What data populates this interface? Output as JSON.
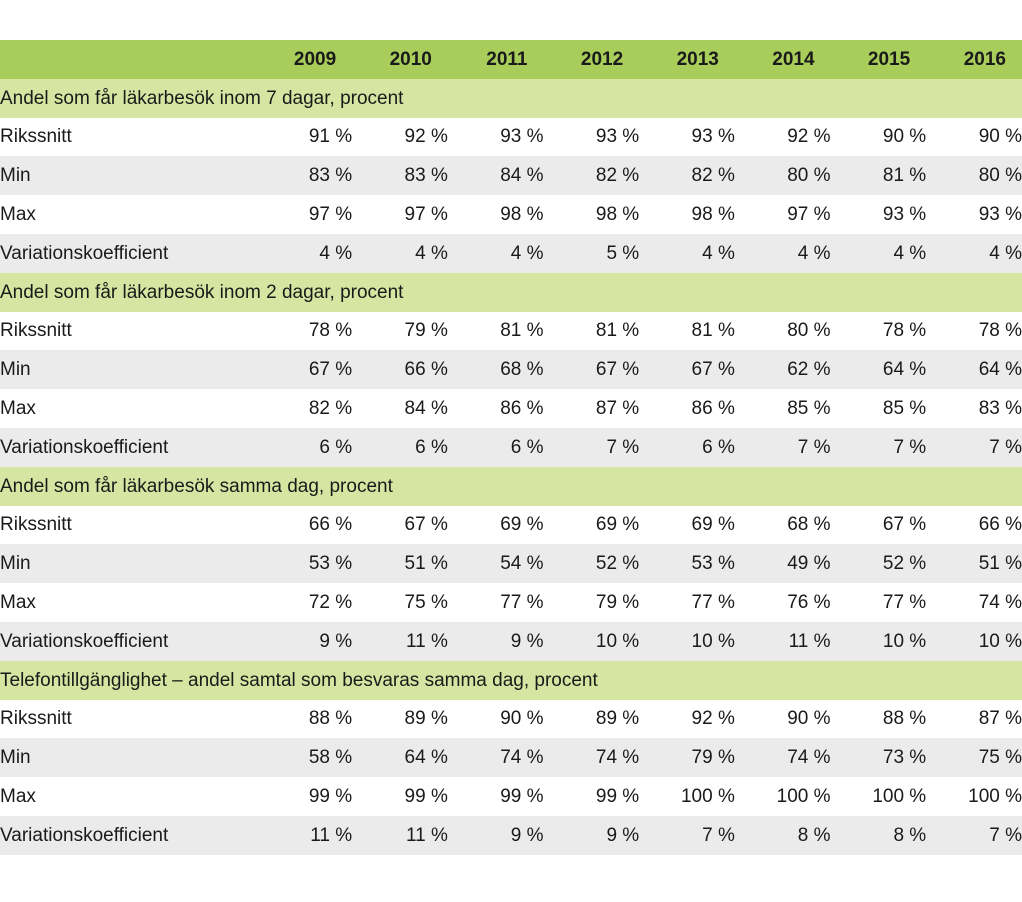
{
  "years": [
    "2009",
    "2010",
    "2011",
    "2012",
    "2013",
    "2014",
    "2015",
    "2016"
  ],
  "sections": [
    {
      "title": "Andel som får läkarbesök inom 7 dagar, procent",
      "rows": [
        {
          "label": "Rikssnitt",
          "values": [
            "91 %",
            "92 %",
            "93 %",
            "93 %",
            "93 %",
            "92 %",
            "90 %",
            "90 %"
          ]
        },
        {
          "label": "Min",
          "values": [
            "83 %",
            "83 %",
            "84 %",
            "82 %",
            "82 %",
            "80 %",
            "81 %",
            "80 %"
          ]
        },
        {
          "label": "Max",
          "values": [
            "97 %",
            "97 %",
            "98 %",
            "98 %",
            "98 %",
            "97 %",
            "93 %",
            "93 %"
          ]
        },
        {
          "label": "Variationskoefficient",
          "values": [
            "4 %",
            "4 %",
            "4 %",
            "5 %",
            "4 %",
            "4 %",
            "4 %",
            "4 %"
          ]
        }
      ]
    },
    {
      "title": "Andel som får läkarbesök inom 2 dagar, procent",
      "rows": [
        {
          "label": "Rikssnitt",
          "values": [
            "78 %",
            "79 %",
            "81 %",
            "81 %",
            "81 %",
            "80 %",
            "78 %",
            "78 %"
          ]
        },
        {
          "label": "Min",
          "values": [
            "67 %",
            "66 %",
            "68 %",
            "67 %",
            "67 %",
            "62 %",
            "64 %",
            "64 %"
          ]
        },
        {
          "label": "Max",
          "values": [
            "82 %",
            "84 %",
            "86 %",
            "87 %",
            "86 %",
            "85 %",
            "85 %",
            "83 %"
          ]
        },
        {
          "label": "Variationskoefficient",
          "values": [
            "6 %",
            "6 %",
            "6 %",
            "7 %",
            "6 %",
            "7 %",
            "7 %",
            "7 %"
          ]
        }
      ]
    },
    {
      "title": "Andel som får läkarbesök samma dag, procent",
      "rows": [
        {
          "label": "Rikssnitt",
          "values": [
            "66 %",
            "67 %",
            "69 %",
            "69 %",
            "69 %",
            "68 %",
            "67 %",
            "66 %"
          ]
        },
        {
          "label": "Min",
          "values": [
            "53 %",
            "51 %",
            "54 %",
            "52 %",
            "53 %",
            "49 %",
            "52 %",
            "51 %"
          ]
        },
        {
          "label": "Max",
          "values": [
            "72 %",
            "75 %",
            "77 %",
            "79 %",
            "77 %",
            "76 %",
            "77 %",
            "74 %"
          ]
        },
        {
          "label": "Variationskoefficient",
          "values": [
            "9 %",
            "11 %",
            "9 %",
            "10 %",
            "10 %",
            "11 %",
            "10 %",
            "10 %"
          ]
        }
      ]
    },
    {
      "title": "Telefontillgänglighet – andel samtal som besvaras samma dag, procent",
      "rows": [
        {
          "label": "Rikssnitt",
          "values": [
            "88 %",
            "89 %",
            "90 %",
            "89 %",
            "92 %",
            "90 %",
            "88 %",
            "87 %"
          ]
        },
        {
          "label": "Min",
          "values": [
            "58 %",
            "64 %",
            "74 %",
            "74 %",
            "79 %",
            "74 %",
            "73 %",
            "75 %"
          ]
        },
        {
          "label": "Max",
          "values": [
            "99 %",
            "99 %",
            "99 %",
            "99 %",
            "100 %",
            "100 %",
            "100 %",
            "100 %"
          ]
        },
        {
          "label": "Variationskoefficient",
          "values": [
            "11 %",
            "11 %",
            "9 %",
            "9 %",
            "7 %",
            "8 %",
            "8 %",
            "7 %"
          ]
        }
      ]
    }
  ],
  "colors": {
    "header_background": "#a8cd5a",
    "section_background": "#d6e6a2",
    "row_alt_background": "#ebebeb",
    "row_background": "#ffffff"
  }
}
